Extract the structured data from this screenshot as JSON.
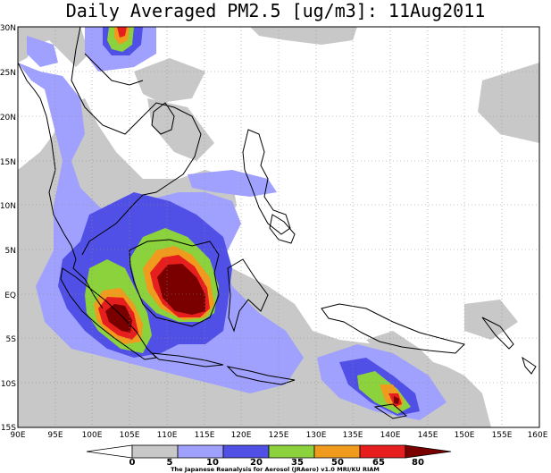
{
  "title": "Daily Averaged PM2.5 [ug/m3]: 11Aug2011",
  "map": {
    "lon_labels": [
      "90E",
      "95E",
      "100E",
      "105E",
      "110E",
      "115E",
      "120E",
      "125E",
      "130E",
      "135E",
      "140E",
      "145E",
      "150E",
      "155E",
      "160E"
    ],
    "lat_labels": [
      "30N",
      "25N",
      "20N",
      "15N",
      "10N",
      "5N",
      "EQ",
      "5S",
      "10S",
      "15S"
    ],
    "lon_range": [
      90,
      160
    ],
    "lat_range": [
      -15,
      30
    ],
    "grid": "dotted"
  },
  "colorbar": {
    "levels": [
      "0",
      "5",
      "10",
      "20",
      "35",
      "50",
      "65",
      "80"
    ],
    "colors": [
      "#ffffff",
      "#c8c8c8",
      "#a0a0ff",
      "#5050e6",
      "#8cd23c",
      "#f09b1e",
      "#e61e1e",
      "#7a0000"
    ]
  },
  "credit": "The Japanese Reanalysis for Aerosol (JRAero) v1.0 MRI/KU RIAM"
}
